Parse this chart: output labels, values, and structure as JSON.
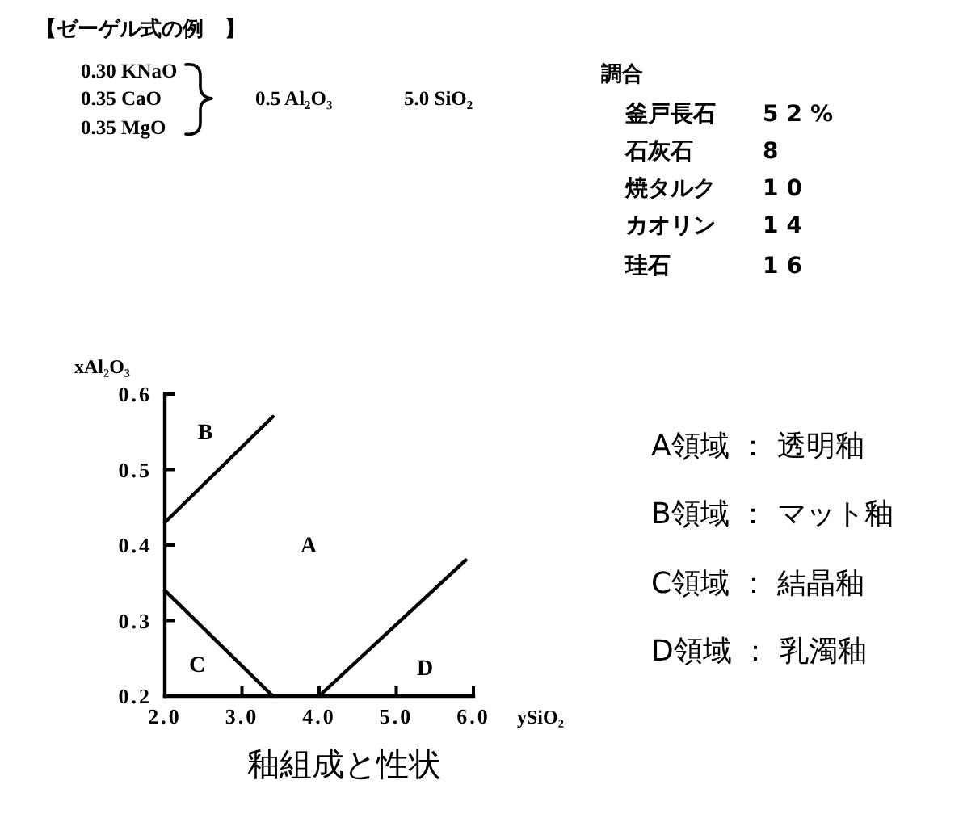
{
  "chart_data": {
    "type": "line",
    "title": "釉組成と性状",
    "xlabel": "ySiO₂",
    "ylabel": "xAl₂O₃",
    "xlim": [
      2,
      6
    ],
    "ylim": [
      0.2,
      0.6
    ],
    "xticks": [
      {
        "value": 2,
        "label": "2.0"
      },
      {
        "value": 3,
        "label": "3.0"
      },
      {
        "value": 4,
        "label": "4.0"
      },
      {
        "value": 5,
        "label": "5.0"
      },
      {
        "value": 6,
        "label": "6.0"
      }
    ],
    "yticks": [
      0.2,
      0.3,
      0.4,
      0.5,
      0.6
    ],
    "series": [
      {
        "color": "#000000",
        "x": [
          2.0,
          3.4
        ],
        "values": [
          0.43,
          0.57
        ]
      },
      {
        "color": "#000000",
        "x": [
          2.0,
          3.4
        ],
        "values": [
          0.34,
          0.2
        ]
      },
      {
        "color": "#000000",
        "x": [
          4.0,
          5.9
        ],
        "values": [
          0.2,
          0.38
        ]
      }
    ],
    "annotations": [
      "【ゼーゲル式の例　】",
      "0.30 KNaO",
      "0.35 CaO",
      "0.35 MgO",
      "0.5 Al₂O₃",
      "5.0 SiO₂",
      "調合",
      "釜戸長石",
      "52%",
      "石灰石",
      "8",
      "焼タルク",
      "10",
      "カオリン",
      "14",
      "珪石",
      "16",
      "A領域 ： 透明釉",
      "B領域 ： マット釉",
      "C領域 ： 結晶釉",
      "D領域 ： 乳濁釉",
      "B",
      "A",
      "C",
      "D"
    ]
  }
}
